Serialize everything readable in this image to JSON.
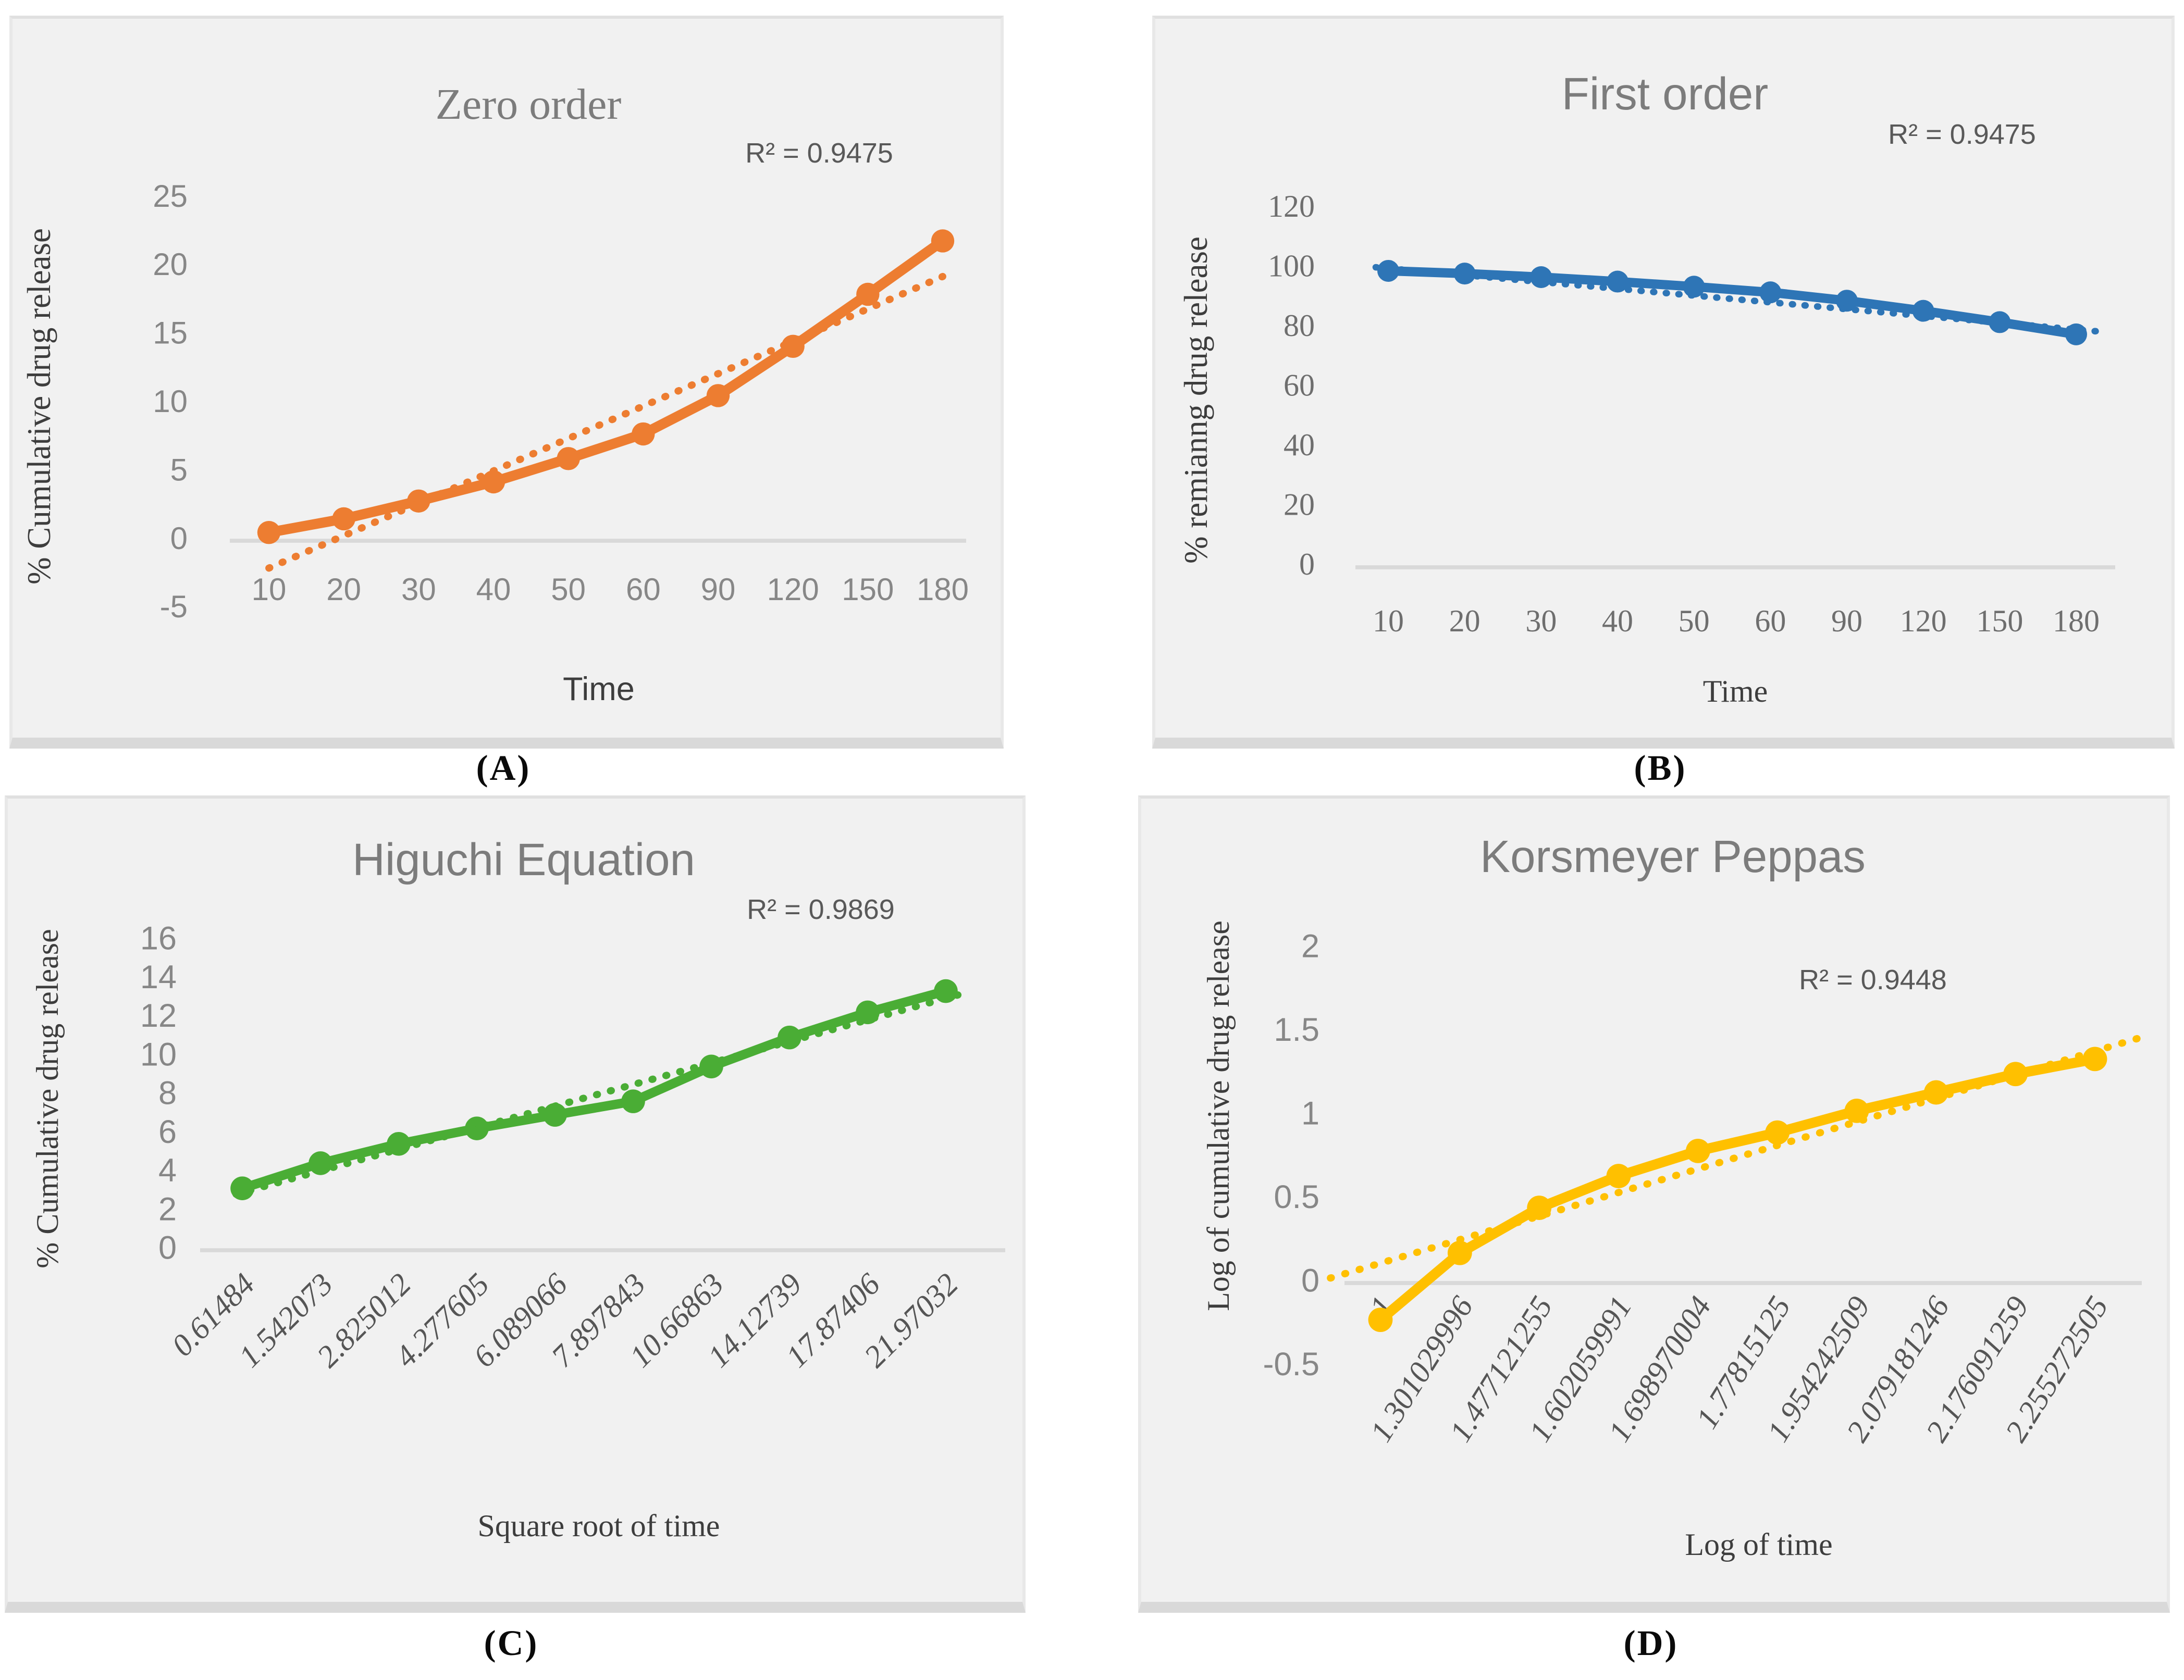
{
  "figure_labels": [
    "(A)",
    "(B)",
    "(C)",
    "(D)"
  ],
  "colors": {
    "panel_background": "#F1F1F1",
    "panel_border": "#D9D9D9",
    "axis_line": "#D9D9D9",
    "title_text": "#7C7C7C",
    "r2_text": "#595959",
    "tick_text": "#878787",
    "serif_tick_text": "#6E6E6E",
    "rotated_tick_text": "#555555",
    "axis_title_text": "#3D3D3D"
  },
  "chart_data": [
    {
      "type": "line",
      "panel": "A",
      "title": "Zero order",
      "r2_label": "R² = 0.9475",
      "xlabel": "Time",
      "ylabel": "% Cumulative drug release",
      "categories": [
        "10",
        "20",
        "30",
        "40",
        "50",
        "60",
        "90",
        "120",
        "150",
        "180"
      ],
      "values": [
        0.6,
        1.6,
        2.9,
        4.3,
        6.0,
        7.8,
        10.6,
        14.2,
        18.0,
        21.9
      ],
      "trendline": {
        "style": "dotted",
        "start_value": -2.0,
        "end_value": 19.3
      },
      "y_ticks": [
        "25",
        "20",
        "15",
        "10",
        "5",
        "0",
        "-5"
      ],
      "ylim": [
        -5,
        25
      ],
      "grid": false,
      "legend": "none",
      "color": "#ED7D31"
    },
    {
      "type": "line",
      "panel": "B",
      "title": "First order",
      "r2_label": "R² = 0.9475",
      "xlabel": "Time",
      "ylabel": "% remianng drug release",
      "categories": [
        "10",
        "20",
        "30",
        "40",
        "50",
        "60",
        "90",
        "120",
        "150",
        "180"
      ],
      "values": [
        99.4,
        98.5,
        97.3,
        95.8,
        94.1,
        92.2,
        89.4,
        86.0,
        82.2,
        78.1
      ],
      "trendline": {
        "style": "dotted",
        "start_value": 100.6,
        "end_value": 78.9
      },
      "y_ticks": [
        "120",
        "100",
        "80",
        "60",
        "40",
        "20",
        "0"
      ],
      "ylim": [
        0,
        120
      ],
      "grid": false,
      "legend": "none",
      "color": "#2E75B6"
    },
    {
      "type": "line",
      "panel": "C",
      "title": "Higuchi Equation",
      "r2_label": "R² = 0.9869",
      "xlabel": "Square root of time",
      "ylabel": "% Cumulative drug release",
      "categories": [
        "0.61484",
        "1.542073",
        "2.825012",
        "4.277605",
        "6.089066",
        "7.897843",
        "10.66863",
        "14.12739",
        "17.87406",
        "21.97032"
      ],
      "values": [
        3.2,
        4.5,
        5.5,
        6.3,
        7.0,
        7.7,
        9.5,
        11.0,
        12.3,
        13.4
      ],
      "trendline": {
        "style": "dotted",
        "start_value": 2.9,
        "end_value": 13.25
      },
      "y_ticks": [
        "16",
        "14",
        "12",
        "10",
        "8",
        "6",
        "4",
        "2",
        "0"
      ],
      "ylim": [
        0,
        16
      ],
      "grid": false,
      "legend": "none",
      "color": "#4AAD35"
    },
    {
      "type": "line",
      "panel": "D",
      "title": "Korsmeyer Peppas",
      "r2_label": "R² = 0.9448",
      "xlabel": "Log of time",
      "ylabel": "Log of cumulative drug release",
      "categories": [
        "1",
        "1.301029996",
        "1.477121255",
        "1.602059991",
        "1.698970004",
        "1.77815125",
        "1.954242509",
        "2.079181246",
        "2.176091259",
        "2.255272505"
      ],
      "values": [
        -0.22,
        0.18,
        0.45,
        0.64,
        0.79,
        0.9,
        1.03,
        1.14,
        1.25,
        1.34
      ],
      "trendline": {
        "style": "dotted",
        "start_value": 0.03,
        "end_value": 1.47
      },
      "y_ticks": [
        "2",
        "1.5",
        "1",
        "0.5",
        "0",
        "-0.5"
      ],
      "ylim": [
        -0.5,
        2
      ],
      "grid": false,
      "legend": "none",
      "color": "#FFC000"
    }
  ]
}
